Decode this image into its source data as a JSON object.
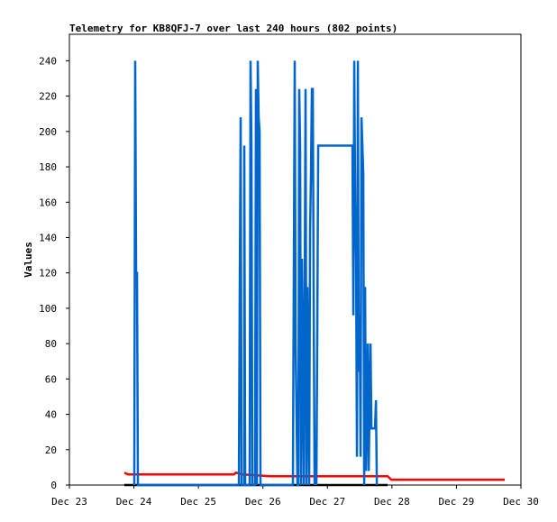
{
  "chart_data": {
    "type": "line",
    "title": "Telemetry for KB8QFJ-7 over last 240 hours (802 points)",
    "y_label": "Values",
    "xlim": [
      0,
      7
    ],
    "xticks": [
      {
        "value": 0,
        "label": "Dec 23"
      },
      {
        "value": 1,
        "label": "Dec 24"
      },
      {
        "value": 2,
        "label": "Dec 25"
      },
      {
        "value": 3,
        "label": "Dec 26"
      },
      {
        "value": 4,
        "label": "Dec 27"
      },
      {
        "value": 5,
        "label": "Dec 28"
      },
      {
        "value": 6,
        "label": "Dec 29"
      },
      {
        "value": 7,
        "label": "Dec 30"
      }
    ],
    "ylim": [
      0,
      255
    ],
    "yticks": [
      0,
      20,
      40,
      60,
      80,
      100,
      120,
      140,
      160,
      180,
      200,
      220,
      240
    ],
    "grid": false,
    "series": [
      {
        "color": "#000000",
        "x": [
          0.852,
          4.933
        ],
        "values": [
          0,
          0
        ]
      },
      {
        "color": "#ff0000",
        "x": [
          0.852,
          0.908,
          2.55,
          2.58,
          2.69,
          3.116,
          4.933,
          4.961,
          4.989,
          6.749
        ],
        "values": [
          7,
          6,
          6,
          7,
          6,
          5,
          5,
          4,
          3,
          3
        ]
      },
      {
        "color": "#0066cc",
        "x": [
          1.006,
          1.02,
          1.034,
          1.048,
          1.062,
          2.627,
          2.641,
          2.655,
          2.669,
          2.711,
          2.711,
          2.725,
          2.794,
          2.808,
          2.822,
          2.836,
          2.878,
          2.892,
          2.906,
          2.92,
          2.934,
          2.948,
          2.962,
          3.465,
          3.479,
          3.493,
          3.507,
          3.521,
          3.535,
          3.549,
          3.563,
          3.577,
          3.591,
          3.605,
          3.619,
          3.633,
          3.647,
          3.661,
          3.675,
          3.689,
          3.703,
          3.717,
          3.731,
          3.745,
          3.759,
          3.773,
          3.787,
          3.801,
          3.815,
          3.829,
          3.843,
          3.857,
          4.388,
          4.402,
          4.416,
          4.43,
          4.444,
          4.458,
          4.472,
          4.486,
          4.5,
          4.514,
          4.528,
          4.556,
          4.57,
          4.584,
          4.598,
          4.626,
          4.64,
          4.668,
          4.682,
          4.738,
          4.752,
          4.766
        ],
        "values": [
          0,
          240,
          120,
          120,
          0,
          0,
          112,
          208,
          0,
          0,
          192,
          0,
          0,
          240,
          192,
          0,
          0,
          224,
          0,
          240,
          208,
          200,
          0,
          0,
          120,
          240,
          80,
          40,
          0,
          0,
          224,
          192,
          0,
          128,
          80,
          0,
          104,
          224,
          0,
          112,
          56,
          0,
          144,
          176,
          224,
          224,
          104,
          0,
          16,
          0,
          88,
          192,
          192,
          96,
          240,
          160,
          128,
          16,
          240,
          64,
          96,
          16,
          208,
          176,
          0,
          112,
          8,
          80,
          8,
          80,
          32,
          32,
          48,
          0
        ]
      }
    ]
  }
}
